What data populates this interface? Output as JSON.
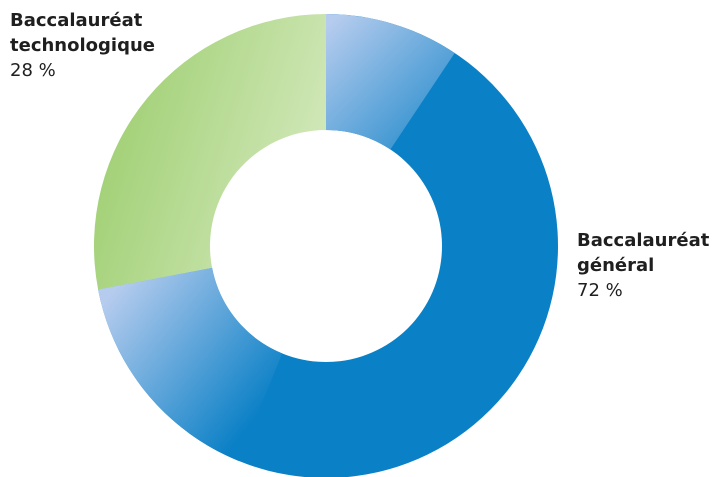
{
  "chart_data": {
    "type": "pie",
    "variant": "donut",
    "slices": [
      {
        "label_line1": "Baccalauréat",
        "label_line2": "général",
        "value": 72,
        "value_label": "72 %",
        "color": "#0a80c6"
      },
      {
        "label_line1": "Baccalauréat",
        "label_line2": "technologique",
        "value": 28,
        "value_label": "28 %",
        "color": "#9fcf72"
      }
    ],
    "start": "top",
    "direction": "clockwise",
    "legend": "none",
    "colors": {
      "general_dark": "#0a80c6",
      "general_light": "#b6ccee",
      "techno_dark": "#9fcf72",
      "techno_light": "#d4e9bd"
    }
  }
}
